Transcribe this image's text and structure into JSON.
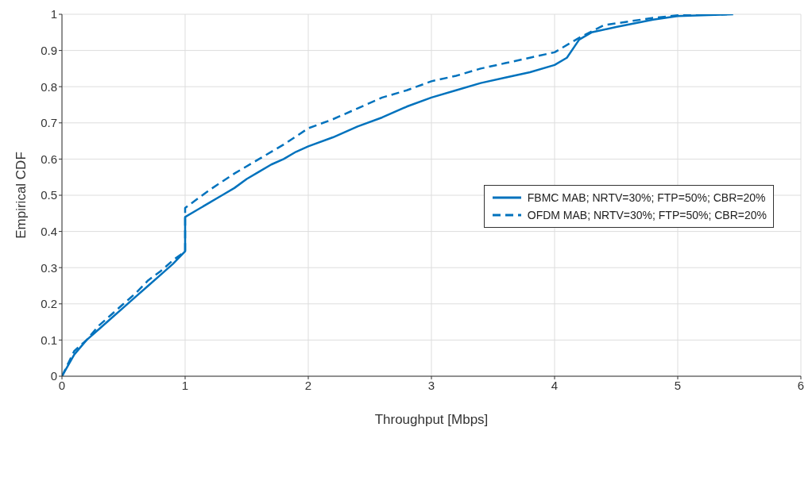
{
  "chart_data": {
    "type": "line",
    "xlabel": "Throughput [Mbps]",
    "ylabel": "Empirical CDF",
    "xlim": [
      0,
      6
    ],
    "xticks": [
      0,
      1,
      2,
      3,
      4,
      5,
      6
    ],
    "ylim": [
      0,
      1
    ],
    "yticks": [
      0,
      0.1,
      0.2,
      0.3,
      0.4,
      0.5,
      0.6,
      0.7,
      0.8,
      0.9,
      1
    ],
    "grid": true,
    "legend": "right",
    "marker": "none",
    "series": [
      {
        "name": "FBMC MAB; NRTV=30%; FTP=50%; CBR=20%",
        "color": "#0072bd",
        "line_style": "solid",
        "x": [
          0,
          0.1,
          0.2,
          0.3,
          0.4,
          0.5,
          0.6,
          0.7,
          0.8,
          0.9,
          1,
          1,
          1.1,
          1.2,
          1.3,
          1.4,
          1.5,
          1.6,
          1.7,
          1.8,
          1.9,
          2,
          2.2,
          2.4,
          2.6,
          2.8,
          3,
          3.2,
          3.4,
          3.6,
          3.8,
          4,
          4.1,
          4.2,
          4.3,
          4.5,
          4.8,
          5,
          5.45
        ],
        "values": [
          0,
          0.06,
          0.1,
          0.13,
          0.16,
          0.19,
          0.22,
          0.25,
          0.28,
          0.31,
          0.345,
          0.44,
          0.46,
          0.48,
          0.5,
          0.52,
          0.545,
          0.565,
          0.585,
          0.6,
          0.62,
          0.635,
          0.66,
          0.69,
          0.715,
          0.745,
          0.77,
          0.79,
          0.81,
          0.825,
          0.84,
          0.86,
          0.88,
          0.93,
          0.95,
          0.965,
          0.985,
          0.995,
          1
        ]
      },
      {
        "name": "OFDM MAB; NRTV=30%; FTP=50%; CBR=20%",
        "color": "#0072bd",
        "line_style": "dashed",
        "x": [
          0,
          0.1,
          0.2,
          0.3,
          0.4,
          0.5,
          0.6,
          0.7,
          0.8,
          0.9,
          1,
          1,
          1.1,
          1.2,
          1.4,
          1.6,
          1.8,
          2,
          2.2,
          2.4,
          2.6,
          2.8,
          3,
          3.2,
          3.4,
          3.6,
          3.8,
          4,
          4.2,
          4.4,
          4.6,
          4.8,
          5,
          5.4
        ],
        "values": [
          0,
          0.07,
          0.1,
          0.14,
          0.17,
          0.2,
          0.23,
          0.265,
          0.29,
          0.32,
          0.345,
          0.465,
          0.49,
          0.515,
          0.56,
          0.6,
          0.64,
          0.685,
          0.71,
          0.74,
          0.77,
          0.79,
          0.815,
          0.83,
          0.85,
          0.865,
          0.88,
          0.895,
          0.935,
          0.97,
          0.98,
          0.99,
          0.997,
          1
        ]
      }
    ]
  }
}
